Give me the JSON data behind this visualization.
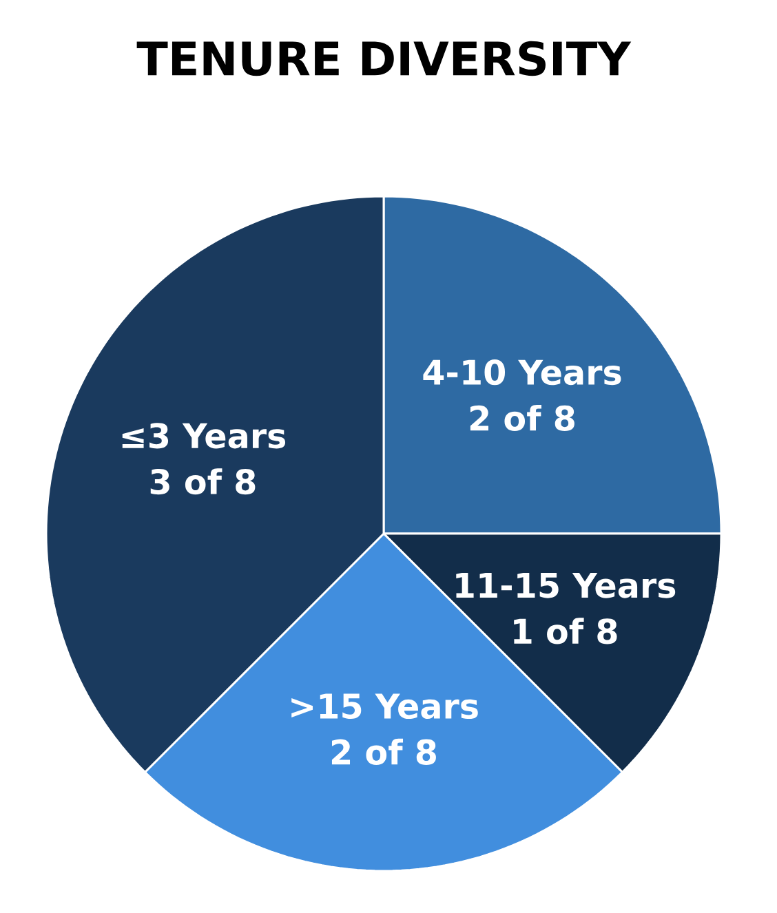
{
  "chart_data": {
    "type": "pie",
    "title": "TENURE DIVERSITY",
    "categories": [
      "4-10 Years",
      "11-15 Years",
      ">15 Years",
      "≤3 Years"
    ],
    "values": [
      2,
      1,
      2,
      3
    ],
    "value_labels": [
      "2 of 8",
      "1 of 8",
      "2 of 8",
      "3 of 8"
    ],
    "colors": [
      "#2e6aa3",
      "#122d4a",
      "#418ede",
      "#1a3a5e"
    ]
  }
}
